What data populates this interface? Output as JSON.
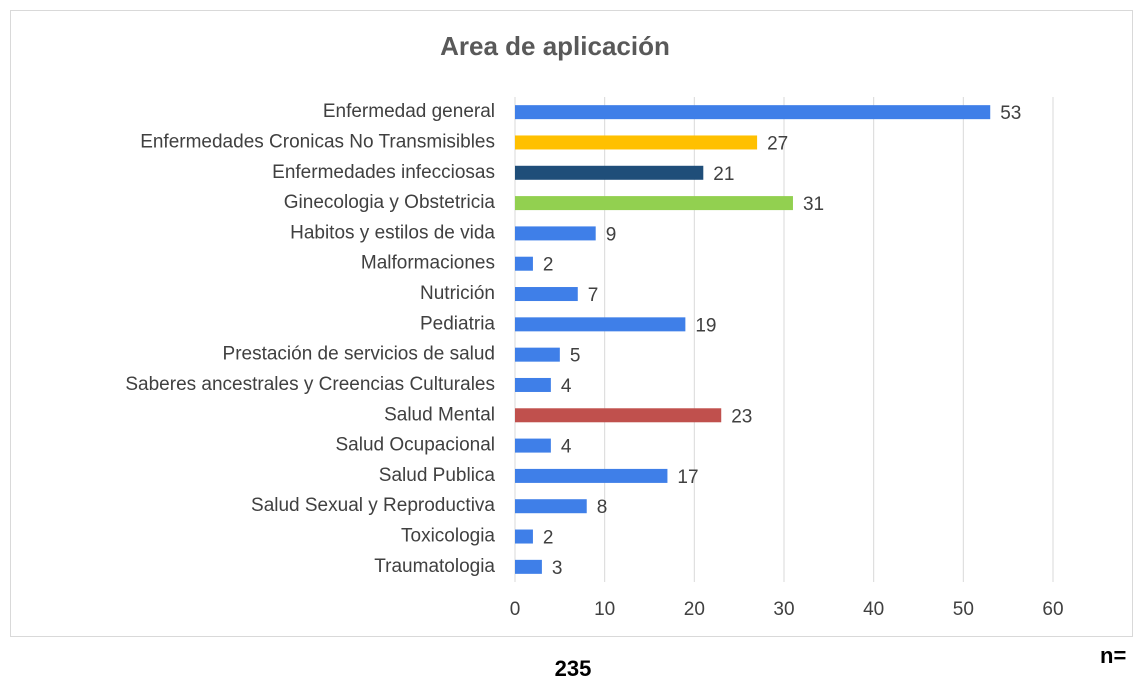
{
  "chart_data": {
    "type": "barh",
    "title": "Area de aplicación",
    "categories": [
      "Enfermedad general",
      "Enfermedades Cronicas No Transmisibles",
      "Enfermedades infecciosas",
      "Ginecologia y Obstetricia",
      "Habitos y estilos de vida",
      "Malformaciones",
      "Nutrición",
      "Pediatria",
      "Prestación de servicios de salud",
      "Saberes ancestrales y Creencias Culturales",
      "Salud Mental",
      "Salud Ocupacional",
      "Salud Publica",
      "Salud Sexual y Reproductiva",
      "Toxicologia",
      "Traumatologia"
    ],
    "values": [
      53,
      27,
      21,
      31,
      9,
      2,
      7,
      19,
      5,
      4,
      23,
      4,
      17,
      8,
      2,
      3
    ],
    "colors": [
      "#3f7fe8",
      "#ffc000",
      "#1f4e79",
      "#92d050",
      "#3f7fe8",
      "#3f7fe8",
      "#3f7fe8",
      "#3f7fe8",
      "#3f7fe8",
      "#3f7fe8",
      "#c0504d",
      "#3f7fe8",
      "#3f7fe8",
      "#3f7fe8",
      "#3f7fe8",
      "#3f7fe8"
    ],
    "xlim": [
      0,
      60
    ],
    "xticks": [
      0,
      10,
      20,
      30,
      40,
      50,
      60
    ],
    "grid": true,
    "annotations": [
      "n=",
      "235"
    ]
  }
}
